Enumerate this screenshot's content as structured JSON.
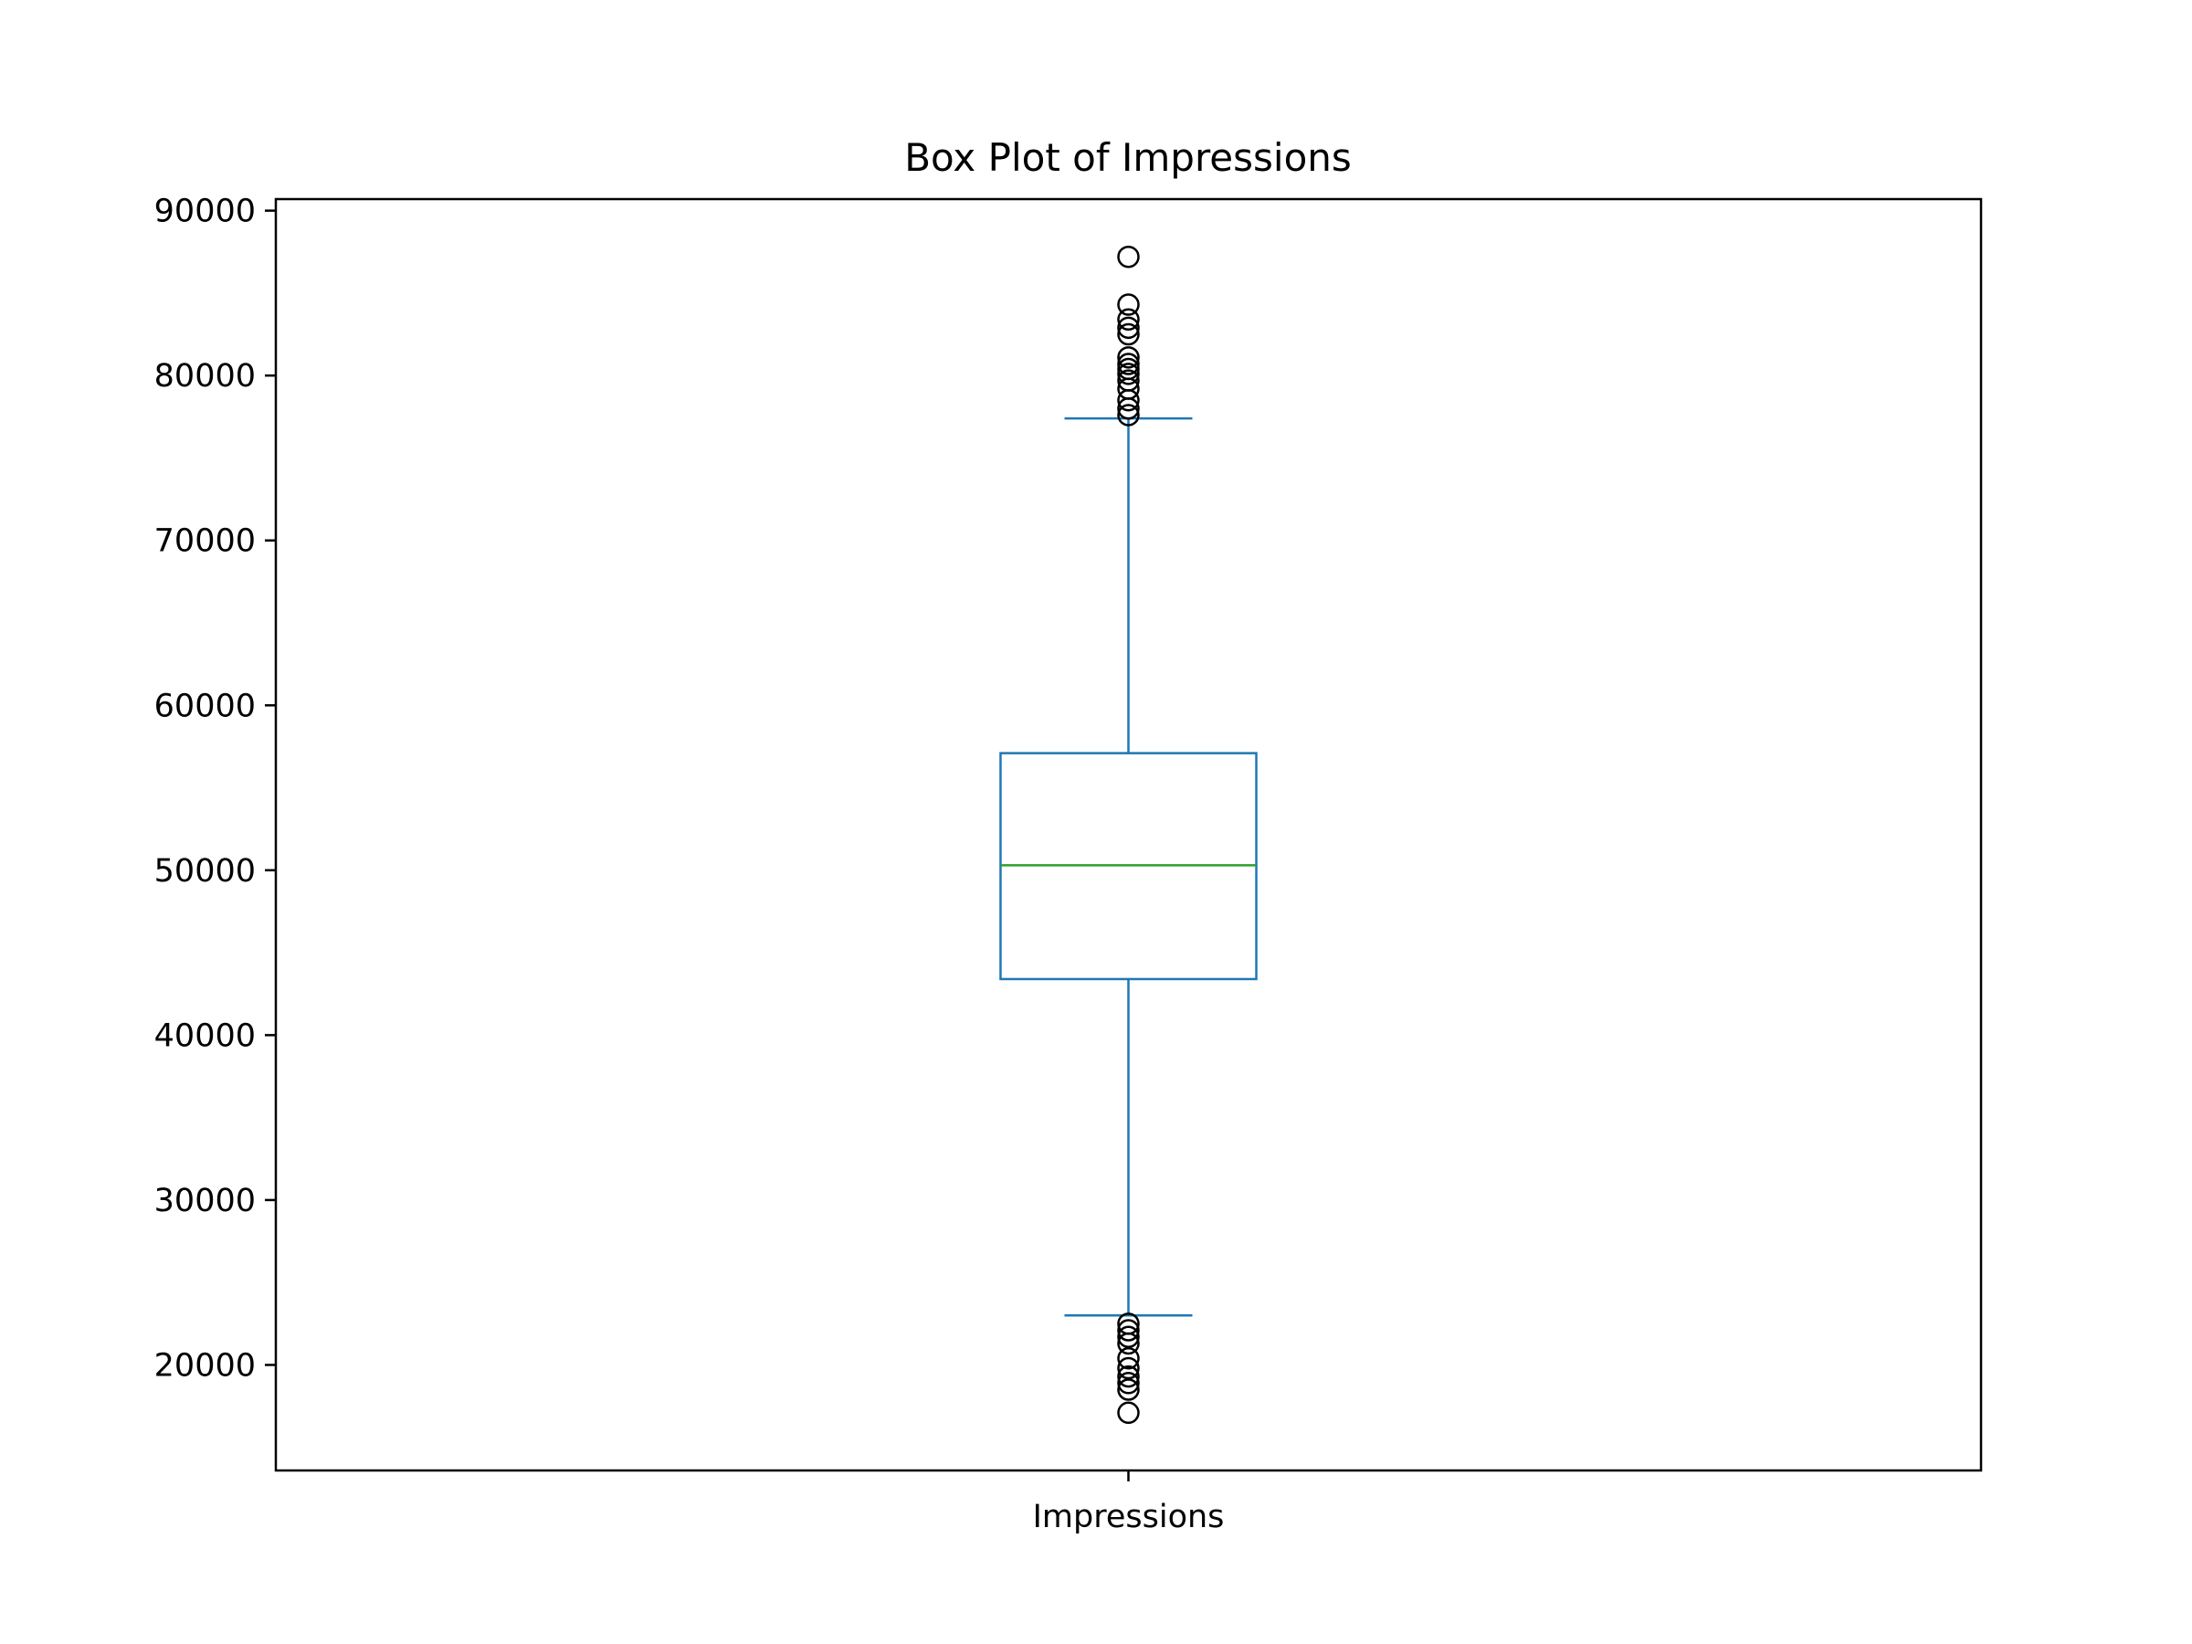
{
  "chart_data": {
    "type": "box",
    "title": "Box Plot of Impressions",
    "xlabel": "",
    "ylabel": "",
    "categories": [
      "Impressions"
    ],
    "ylim": [
      13600,
      90700
    ],
    "yticks": [
      20000,
      30000,
      40000,
      50000,
      60000,
      70000,
      80000,
      90000
    ],
    "grid": false,
    "boxes": [
      {
        "category": "Impressions",
        "whisker_low": 23000,
        "q1": 43400,
        "median": 50300,
        "q3": 57100,
        "whisker_high": 77400,
        "outliers_high": [
          87200,
          84300,
          83400,
          82900,
          82500,
          81100,
          80700,
          80400,
          80100,
          79700,
          79200,
          78500,
          78000,
          77600
        ],
        "outliers_low": [
          22500,
          22100,
          21700,
          21300,
          20400,
          19800,
          19300,
          18900,
          18500,
          17100
        ]
      }
    ],
    "colors": {
      "box": "#1f77b4",
      "median": "#2ca02c",
      "flier": "#000000",
      "axis": "#000000"
    }
  }
}
